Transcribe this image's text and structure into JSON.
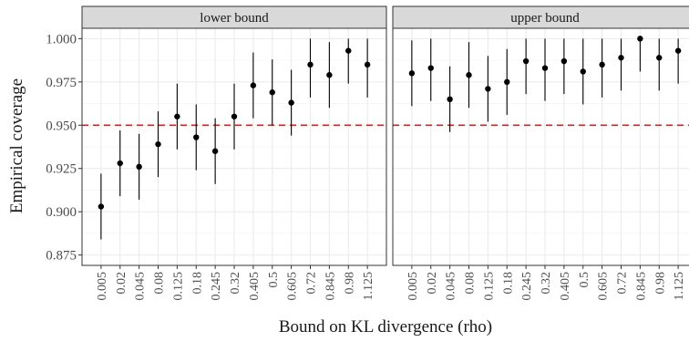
{
  "chart_data": {
    "type": "scatter",
    "subtype": "point-range faceted",
    "xlabel": "Bound on KL divergence (rho)",
    "ylabel": "Empirical coverage",
    "ylim": [
      0.875,
      1.0
    ],
    "yticks": [
      "0.875",
      "0.900",
      "0.925",
      "0.950",
      "0.975",
      "1.000"
    ],
    "categories": [
      "0.005",
      "0.02",
      "0.045",
      "0.08",
      "0.125",
      "0.18",
      "0.245",
      "0.32",
      "0.405",
      "0.5",
      "0.605",
      "0.72",
      "0.845",
      "0.98",
      "1.125"
    ],
    "reference_line": {
      "y": 0.95,
      "color": "#e41a1c",
      "style": "dashed"
    },
    "grid": true,
    "panels": [
      {
        "name": "lower bound",
        "values": [
          0.903,
          0.928,
          0.926,
          0.939,
          0.955,
          0.943,
          0.935,
          0.955,
          0.973,
          0.969,
          0.963,
          0.985,
          0.979,
          0.993,
          0.985
        ],
        "lower": [
          0.884,
          0.909,
          0.907,
          0.92,
          0.936,
          0.924,
          0.916,
          0.936,
          0.954,
          0.95,
          0.944,
          0.966,
          0.96,
          0.974,
          0.966
        ],
        "upper": [
          0.922,
          0.947,
          0.945,
          0.958,
          0.974,
          0.962,
          0.954,
          0.974,
          0.992,
          0.988,
          0.982,
          1.0,
          0.998,
          1.0,
          1.0
        ]
      },
      {
        "name": "upper bound",
        "values": [
          0.98,
          0.983,
          0.965,
          0.979,
          0.971,
          0.975,
          0.987,
          0.983,
          0.987,
          0.981,
          0.985,
          0.989,
          1.0,
          0.989,
          0.993
        ],
        "lower": [
          0.961,
          0.964,
          0.946,
          0.96,
          0.952,
          0.956,
          0.968,
          0.964,
          0.968,
          0.962,
          0.966,
          0.97,
          0.981,
          0.97,
          0.974
        ],
        "upper": [
          0.999,
          1.0,
          0.984,
          0.998,
          0.99,
          0.994,
          1.0,
          1.0,
          1.0,
          1.0,
          1.0,
          1.0,
          1.0,
          1.0,
          1.0
        ]
      }
    ]
  },
  "colors": {
    "strip_bg": "#d9d9d9",
    "grid_major": "#ebebeb",
    "grid_minor": "#f5f5f5",
    "point": "#000000",
    "reference": "#e41a1c"
  }
}
